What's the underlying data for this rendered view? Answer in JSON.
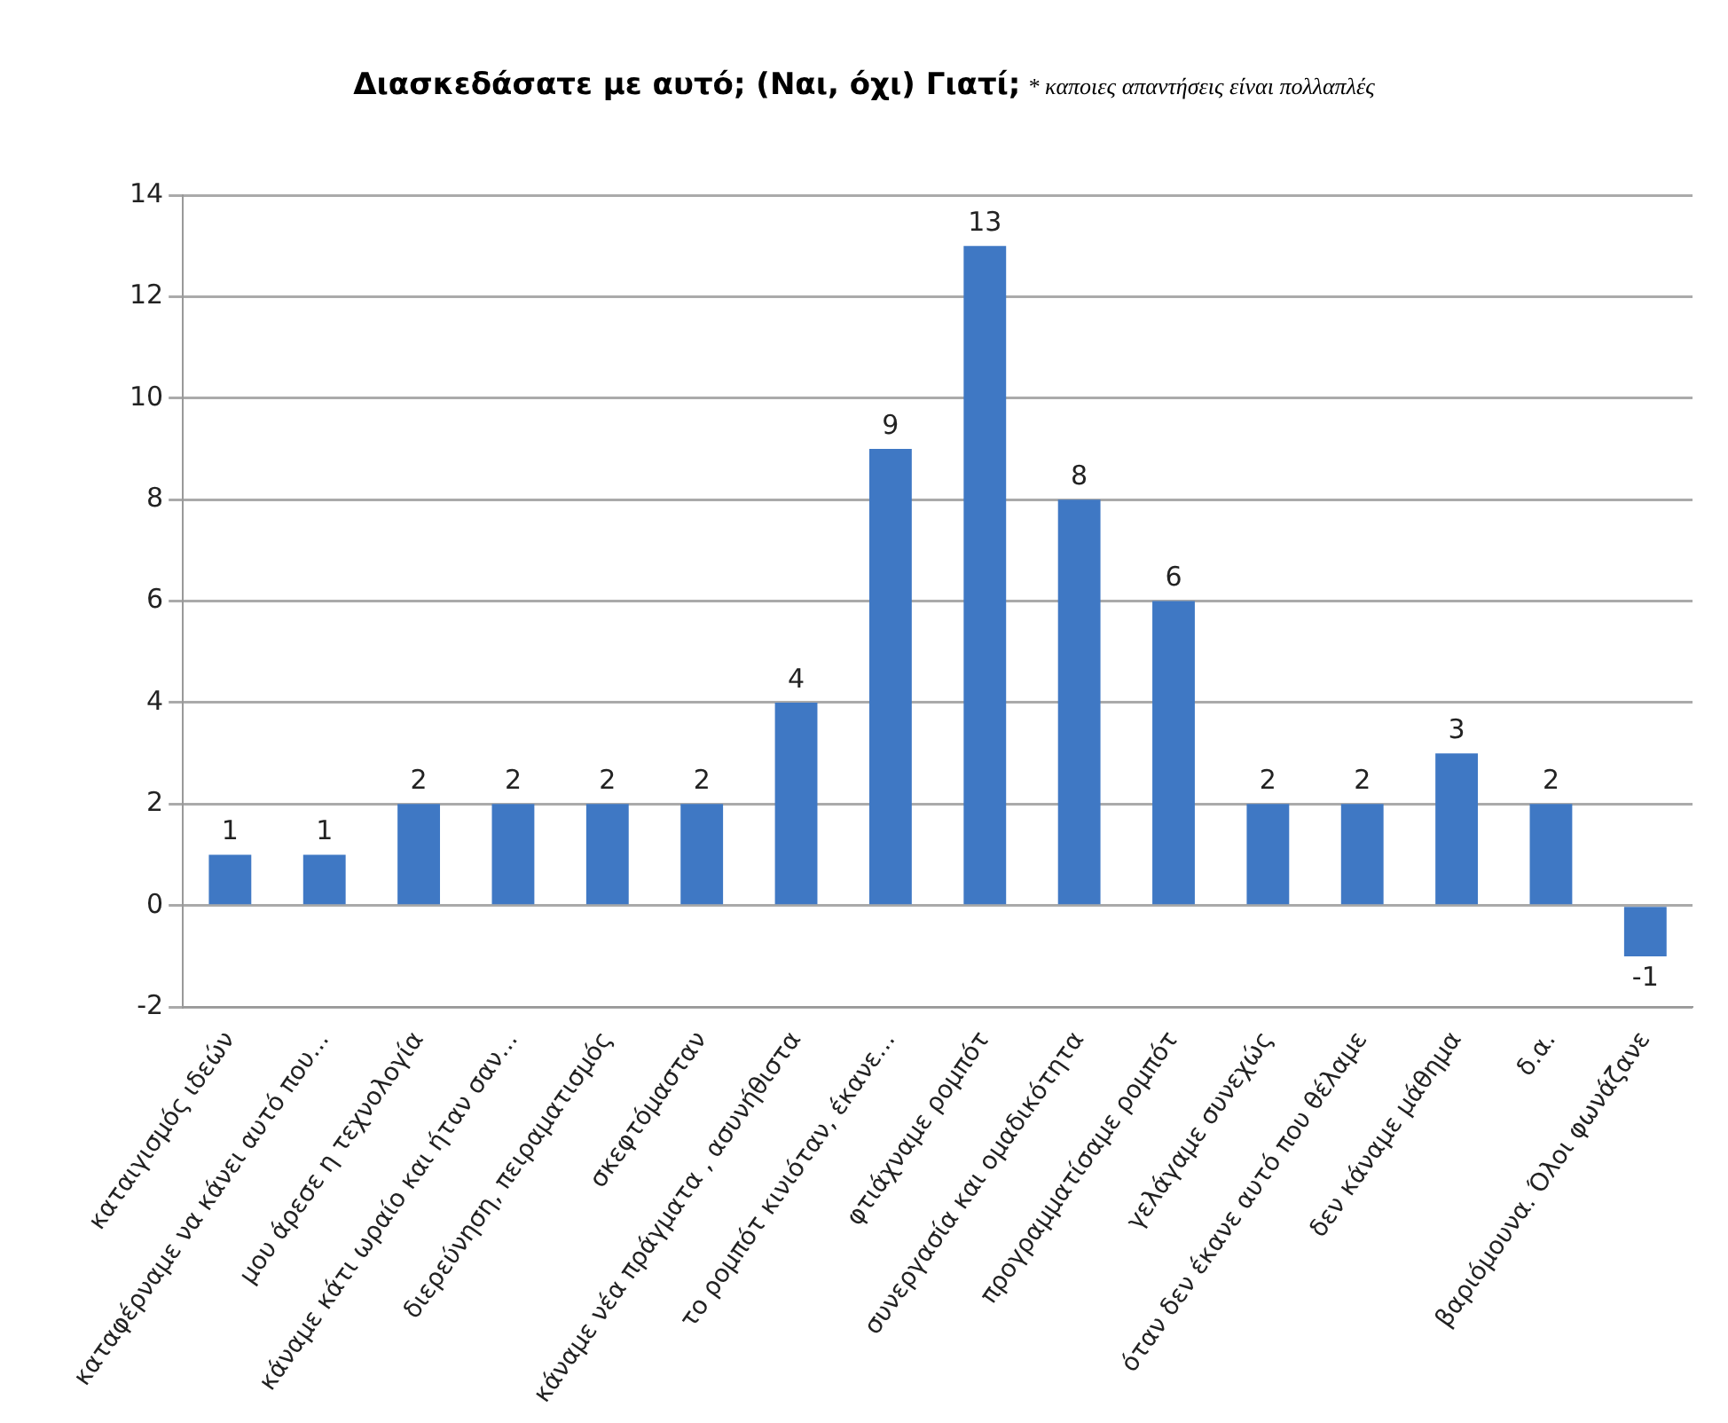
{
  "chart_data": {
    "type": "bar",
    "title": "Διασκεδάσατε με αυτό; (Ναι,  όχι) Γιατί;",
    "subtitle": "* καποιες απαντήσεις είναι πολλαπλές",
    "categories": [
      "καταιγισμός ιδεών",
      "καταφέρναμε να κάνει αυτό που...",
      "μου άρεσε η τεχνολογία",
      "κάναμε κάτι ωραίο και ήταν σαν...",
      "διερεύνηση, πειραματισμός",
      "σκεφτόμασταν",
      "κάναμε νέα πράγματα , ασυνήθιστα",
      "το ρομπότ κινιόταν, έκανε...",
      "φτιάχναμε ρομπότ",
      "συνεργασία και ομαδικότητα",
      "προγραμματίσαμε ρομπότ",
      "γελάγαμε συνεχώς",
      "όταν δεν έκανε αυτό που θέλαμε",
      "δεν κάναμε μάθημα",
      "δ.α.",
      "βαριόμουνα. Όλοι φωνάζανε"
    ],
    "values": [
      1,
      1,
      2,
      2,
      2,
      2,
      4,
      9,
      13,
      8,
      6,
      2,
      2,
      3,
      2,
      -1
    ],
    "color": "#3f78c4",
    "ylim": [
      -2,
      14
    ],
    "yticks": [
      -2,
      0,
      2,
      4,
      6,
      8,
      10,
      12,
      14
    ],
    "grid": "y",
    "data_labels": true,
    "legend": false
  }
}
